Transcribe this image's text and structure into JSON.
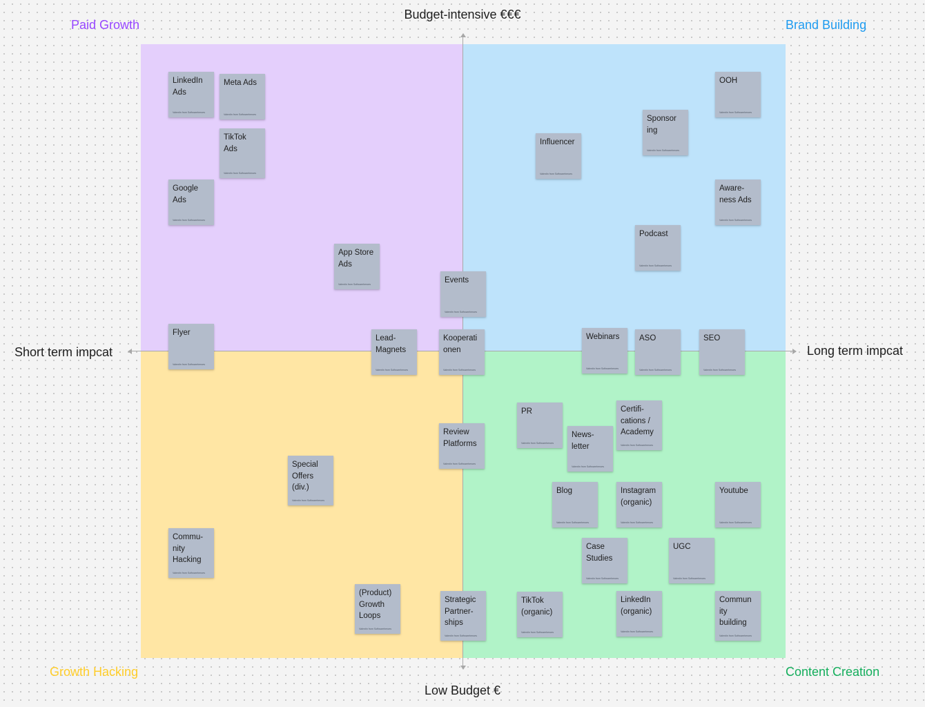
{
  "axes": {
    "top": "Budget-intensive €€€",
    "bottom": "Low Budget €",
    "left": "Short term impcat",
    "right": "Long term impcat"
  },
  "quadrants": {
    "top_left": "Paid Growth",
    "top_right": "Brand Building",
    "bottom_left": "Growth Hacking",
    "bottom_right": "Content Creation"
  },
  "colors": {
    "paid_growth": "#9747ff",
    "brand_building": "#1e9bf0",
    "growth_hacking": "#ffcd29",
    "content_creation": "#14ae5c",
    "sticky": "#b3bccb"
  },
  "author": "Valentin from Softwareheroes",
  "stickies": [
    "LinkedIn\nAds",
    "Meta Ads",
    "TikTok\nAds",
    "Google\nAds",
    "App Store\nAds",
    "Flyer",
    "Lead-\nMagnets",
    "Events",
    "Kooperati\nonen",
    "Review\nPlatforms",
    "Strategic\nPartner-\nships",
    "Influencer",
    "Sponsor\ning",
    "OOH",
    "Aware-\nness Ads",
    "Podcast",
    "Webinars",
    "ASO",
    "SEO",
    "PR",
    "News-\nletter",
    "Certifi-\ncations /\nAcademy",
    "Blog",
    "Instagram\n(organic)",
    "Youtube",
    "Case\nStudies",
    "UGC",
    "TikTok\n(organic)",
    "LinkedIn\n(organic)",
    "Commun\nity\nbuilding",
    "Special\nOffers\n(div.)",
    "Commu-\nnity\nHacking",
    "(Product)\nGrowth\nLoops"
  ]
}
